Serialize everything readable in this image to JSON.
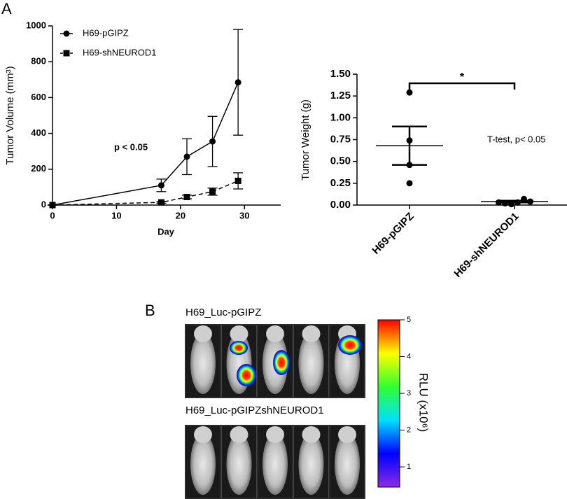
{
  "panel_labels": [
    "A",
    "B"
  ],
  "chart_data": [
    {
      "type": "line",
      "xlabel": "Day",
      "ylabel": "Tumor Volume (mm³)",
      "annotation": "p < 0.05",
      "x": [
        0,
        17,
        21,
        25,
        29
      ],
      "series": [
        {
          "name": "H69-pGIPZ",
          "color": "#000000",
          "marker": "circle",
          "dashed": false,
          "values": [
            0,
            110,
            270,
            355,
            685
          ],
          "errors": [
            0,
            35,
            100,
            140,
            295
          ]
        },
        {
          "name": "H69-shNEUROD1",
          "color": "#000000",
          "marker": "square",
          "dashed": true,
          "values": [
            0,
            15,
            45,
            75,
            135
          ],
          "errors": [
            0,
            5,
            10,
            20,
            45
          ]
        }
      ],
      "xlim": [
        0,
        35
      ],
      "xticks": [
        0,
        10,
        20,
        30
      ],
      "ylim": [
        0,
        1000
      ],
      "yticks": [
        0,
        200,
        400,
        600,
        800,
        1000
      ]
    },
    {
      "type": "dot",
      "ylabel": "Tumor Weight  (g)",
      "annotation": "T-test, p< 0.05",
      "significance": "*",
      "categories": [
        "H69-pGIPZ",
        "H69-shNEUROD1"
      ],
      "points": [
        [
          1.29,
          0.74,
          0.46,
          0.25
        ],
        [
          0.03,
          0.02,
          0.01,
          0.03,
          0.07,
          0.04
        ]
      ],
      "means": [
        0.68,
        0.04
      ],
      "sem": [
        0.22,
        0.01
      ],
      "color": "#000000",
      "ylim": [
        0,
        1.5
      ],
      "yticks": [
        {
          "value": 0,
          "label": "0.00"
        },
        {
          "value": 0.25,
          "label": "0.25"
        },
        {
          "value": 0.5,
          "label": "0.50"
        },
        {
          "value": 0.75,
          "label": "0.75"
        },
        {
          "value": 1,
          "label": "1.00"
        },
        {
          "value": 1.25,
          "label": "1.25"
        },
        {
          "value": 1.5,
          "label": "1.50"
        }
      ]
    },
    {
      "type": "colorbar",
      "rows": [
        "H69_Luc-pGIPZ",
        "H69_Luc-pGIPZshNEUROD1"
      ],
      "label": "RLU (x10⁶)",
      "clim": [
        0.45,
        5
      ],
      "ticks": [
        1,
        2,
        3,
        4,
        5
      ]
    }
  ]
}
